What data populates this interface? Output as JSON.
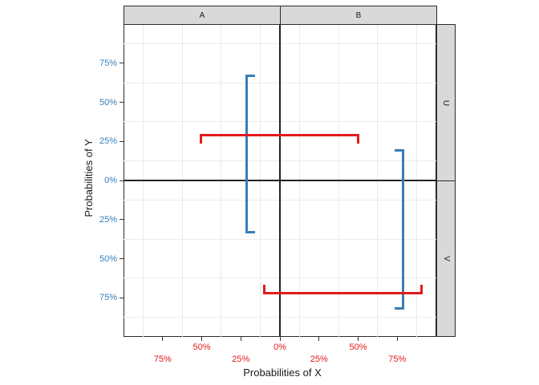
{
  "titles": {
    "x": "Probabilities of X",
    "y": "Probabilities of Y"
  },
  "facets": {
    "cols": [
      "A",
      "B"
    ],
    "rows": [
      "U",
      "V"
    ]
  },
  "colors": {
    "x_axis_text": "#E41A1C",
    "y_axis_text": "#377EB8",
    "red_bar": "#E41A1C",
    "blue_bar": "#377EB8",
    "strip_fill": "#D9D9D9",
    "panel_border": "#2B2B2B",
    "minor_grid": "#EBEBEB",
    "tick_mark": "#333333"
  },
  "axes": {
    "x": {
      "ticks_pct": [
        -75,
        -50,
        -25,
        0,
        25,
        50,
        75
      ],
      "labels": [
        "75%",
        "50%",
        "25%",
        "0%",
        "25%",
        "50%",
        "75%"
      ],
      "dodge_rows": [
        1,
        0,
        1,
        0,
        1,
        0,
        1
      ]
    },
    "y": {
      "ticks_pct": [
        75,
        50,
        25,
        0,
        -25,
        -50,
        -75
      ],
      "labels": [
        "75%",
        "50%",
        "25%",
        "0%",
        "25%",
        "50%",
        "75%"
      ]
    },
    "minor_gridlines_pct": [
      -87.5,
      -62.5,
      -37.5,
      -12.5,
      12.5,
      37.5,
      62.5,
      87.5
    ]
  },
  "chart_data": {
    "type": "errorbar",
    "xlabel": "Probabilities of X",
    "ylabel": "Probabilities of Y",
    "xlim_pct": [
      -100,
      100
    ],
    "ylim_pct": [
      -100,
      100
    ],
    "facet_cols": [
      "A",
      "B"
    ],
    "facet_rows": [
      "U",
      "V"
    ],
    "grid": "minor-only",
    "legend": "none",
    "series": [
      {
        "name": "y-interval-col-A",
        "orientation": "vertical",
        "color": "#377EB8",
        "x": -21.5,
        "ymin": -33,
        "ymax": 67,
        "cap_dir": "right"
      },
      {
        "name": "y-interval-col-B",
        "orientation": "vertical",
        "color": "#377EB8",
        "x": 78.5,
        "ymin": -82,
        "ymax": 19,
        "cap_dir": "left"
      },
      {
        "name": "x-interval-row-U",
        "orientation": "horizontal",
        "color": "#E41A1C",
        "y": 29,
        "xmin": -50.5,
        "xmax": 50,
        "cap_dir": "down"
      },
      {
        "name": "x-interval-row-V",
        "orientation": "horizontal",
        "color": "#E41A1C",
        "y": -72,
        "xmin": -10,
        "xmax": 90.5,
        "cap_dir": "up"
      }
    ]
  }
}
